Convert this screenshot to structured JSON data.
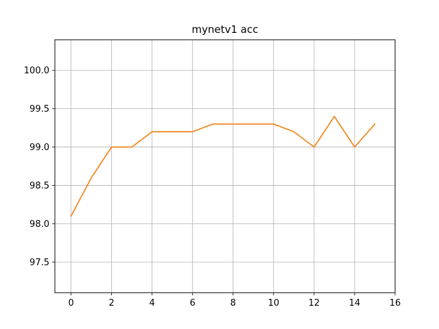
{
  "chart_data": {
    "type": "line",
    "title": "mynetv1 acc",
    "xlabel": "",
    "ylabel": "",
    "xlim": [
      -0.8,
      16
    ],
    "ylim": [
      97.1,
      100.4
    ],
    "xticks": [
      0,
      2,
      4,
      6,
      8,
      10,
      12,
      14,
      16
    ],
    "yticks": [
      97.5,
      98.0,
      98.5,
      99.0,
      99.5,
      100.0
    ],
    "xtick_labels": [
      "0",
      "2",
      "4",
      "6",
      "8",
      "10",
      "12",
      "14",
      "16"
    ],
    "ytick_labels": [
      "97.5",
      "98.0",
      "98.5",
      "99.0",
      "99.5",
      "100.0"
    ],
    "grid": true,
    "series": [
      {
        "color": "#f08a24",
        "x": [
          0,
          1,
          2,
          3,
          4,
          5,
          6,
          7,
          8,
          9,
          10,
          11,
          12,
          13,
          14,
          15
        ],
        "values": [
          98.1,
          98.6,
          99.0,
          99.0,
          99.2,
          99.2,
          99.2,
          99.3,
          99.3,
          99.3,
          99.3,
          99.2,
          99.0,
          99.4,
          99.0,
          99.3
        ]
      }
    ]
  }
}
